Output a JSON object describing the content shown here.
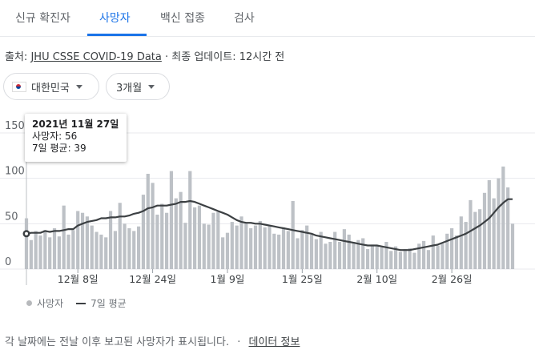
{
  "tabs": [
    "신규 확진자",
    "사망자",
    "백신 접종",
    "검사"
  ],
  "active_tab": "사망자",
  "source": {
    "prefix": "출처:",
    "link": "JHU CSSE COVID-19 Data",
    "separator": "·",
    "updated": "최종 업데이트: 12시간 전"
  },
  "filters": {
    "region": "대한민국",
    "period": "3개월"
  },
  "tooltip": {
    "date": "2021년 11월 27일",
    "deaths": "사망자: 56",
    "avg": "7일 평균: 39"
  },
  "legend": {
    "bars": "사망자",
    "line": "7일 평균"
  },
  "footer": {
    "note": "각 날짜에는 전날 이후 보고된 사망자가 표시됩니다.",
    "separator": "·",
    "link": "데이터 정보"
  },
  "colors": {
    "accent": "#1a73e8",
    "bar": "#bdc1c6",
    "line": "#3c4043",
    "grid": "#e8eaed"
  },
  "chart_data": {
    "type": "bar",
    "series": [
      {
        "name": "사망자",
        "type": "bar",
        "values": [
          56,
          32,
          42,
          37,
          43,
          35,
          45,
          36,
          70,
          38,
          43,
          64,
          62,
          58,
          48,
          41,
          38,
          35,
          64,
          42,
          73,
          50,
          45,
          42,
          47,
          82,
          105,
          95,
          60,
          72,
          62,
          108,
          78,
          85,
          51,
          108,
          68,
          70,
          50,
          49,
          62,
          63,
          35,
          40,
          52,
          48,
          58,
          51,
          45,
          48,
          53,
          46,
          48,
          39,
          38,
          46,
          42,
          75,
          34,
          43,
          48,
          38,
          33,
          41,
          28,
          30,
          41,
          30,
          44,
          38,
          30,
          32,
          34,
          22,
          27,
          26,
          24,
          30,
          20,
          25,
          19,
          22,
          23,
          18,
          28,
          31,
          21,
          37,
          26,
          28,
          39,
          45,
          37,
          58,
          52,
          76,
          63,
          66,
          84,
          98,
          78,
          100,
          113,
          90,
          50
        ]
      },
      {
        "name": "7일 평균",
        "type": "line",
        "values": [
          39,
          40,
          40,
          40,
          42,
          41,
          42,
          42,
          43,
          44,
          44,
          48,
          50,
          52,
          53,
          54,
          56,
          56,
          57,
          57,
          58,
          58,
          59,
          61,
          62,
          64,
          67,
          68,
          70,
          70,
          70,
          71,
          72,
          74,
          74,
          75,
          74,
          72,
          70,
          68,
          66,
          64,
          62,
          60,
          57,
          54,
          52,
          51,
          51,
          50,
          50,
          49,
          48,
          47,
          46,
          45,
          44,
          43,
          42,
          41,
          40,
          39,
          37,
          36,
          35,
          34,
          33,
          32,
          31,
          30,
          29,
          28,
          27,
          26,
          26,
          26,
          25,
          24,
          23,
          22,
          21,
          21,
          21,
          22,
          23,
          24,
          25,
          26,
          27,
          29,
          31,
          33,
          35,
          37,
          39,
          42,
          45,
          48,
          52,
          56,
          62,
          68,
          73,
          77,
          77
        ]
      }
    ],
    "x_tick_labels": [
      "12월 8일",
      "12월 24일",
      "1월 9일",
      "1월 25일",
      "2월 10일",
      "2월 26일"
    ],
    "y_ticks": [
      0,
      50,
      100,
      150
    ],
    "ylim": [
      0,
      150
    ],
    "legend_position": "bottom-left",
    "grid": true
  }
}
